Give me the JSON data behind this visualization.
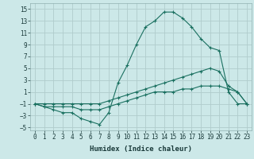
{
  "xlabel": "Humidex (Indice chaleur)",
  "bg_color": "#cce8e8",
  "grid_color": "#b0cccc",
  "line_color": "#1a7060",
  "xlim": [
    -0.5,
    23.5
  ],
  "ylim": [
    -5.5,
    16
  ],
  "xticks": [
    0,
    1,
    2,
    3,
    4,
    5,
    6,
    7,
    8,
    9,
    10,
    11,
    12,
    13,
    14,
    15,
    16,
    17,
    18,
    19,
    20,
    21,
    22,
    23
  ],
  "yticks": [
    -5,
    -3,
    -1,
    1,
    3,
    5,
    7,
    9,
    11,
    13,
    15
  ],
  "series": [
    {
      "x": [
        0,
        1,
        2,
        3,
        4,
        5,
        6,
        7,
        8,
        9,
        10,
        11,
        12,
        13,
        14,
        15,
        16,
        17,
        18,
        19,
        20,
        21,
        22,
        23
      ],
      "y": [
        -1,
        -1.5,
        -2,
        -2.5,
        -2.5,
        -3.5,
        -4,
        -4.5,
        -2.5,
        2.5,
        5.5,
        9,
        12,
        13,
        14.5,
        14.5,
        13.5,
        12,
        10,
        8.5,
        8,
        1,
        -1,
        -1
      ]
    },
    {
      "x": [
        0,
        1,
        2,
        3,
        4,
        5,
        6,
        7,
        8,
        9,
        10,
        11,
        12,
        13,
        14,
        15,
        16,
        17,
        18,
        19,
        20,
        21,
        22,
        23
      ],
      "y": [
        -1,
        -1,
        -1,
        -1,
        -1,
        -1,
        -1,
        -1,
        -0.5,
        0,
        0.5,
        1,
        1.5,
        2,
        2.5,
        3,
        3.5,
        4,
        4.5,
        5,
        4.5,
        2,
        1,
        -1
      ]
    },
    {
      "x": [
        0,
        1,
        2,
        3,
        4,
        5,
        6,
        7,
        8,
        9,
        10,
        11,
        12,
        13,
        14,
        15,
        16,
        17,
        18,
        19,
        20,
        21,
        22,
        23
      ],
      "y": [
        -1,
        -1.5,
        -1.5,
        -1.5,
        -1.5,
        -2,
        -2,
        -2,
        -1.5,
        -1,
        -0.5,
        0,
        0.5,
        1,
        1,
        1,
        1.5,
        1.5,
        2,
        2,
        2,
        1.5,
        1,
        -1
      ]
    }
  ]
}
